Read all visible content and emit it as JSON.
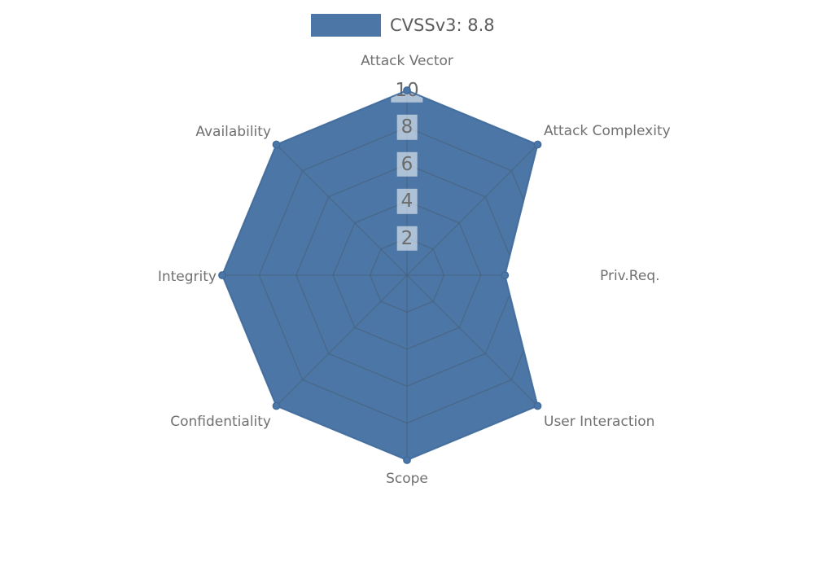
{
  "colors": {
    "fill": "#4b76a6",
    "edge": "#3f6a9b",
    "grid": "#4a5a6a",
    "tick_text": "#6b6b6b",
    "category_text": "#707070",
    "legend_text": "#5c5c5c",
    "tick_box": "rgba(255,255,255,0.55)",
    "background": "#ffffff"
  },
  "chart_data": {
    "type": "radar",
    "title": "CVSSv3: 8.8",
    "categories": [
      "Attack Vector",
      "Attack Complexity",
      "Priv.Req.",
      "User Interaction",
      "Scope",
      "Confidentiality",
      "Integrity",
      "Availability"
    ],
    "series": [
      {
        "name": "CVSSv3: 8.8",
        "values": [
          10,
          10,
          5.3,
          10,
          10,
          10,
          10,
          10
        ]
      }
    ],
    "radial_ticks": [
      2,
      4,
      6,
      8,
      10
    ],
    "rlim": [
      0,
      10
    ],
    "grid": true,
    "grid_clipped_to_fill": true,
    "legend_position": "top-center",
    "marker": "circle"
  }
}
